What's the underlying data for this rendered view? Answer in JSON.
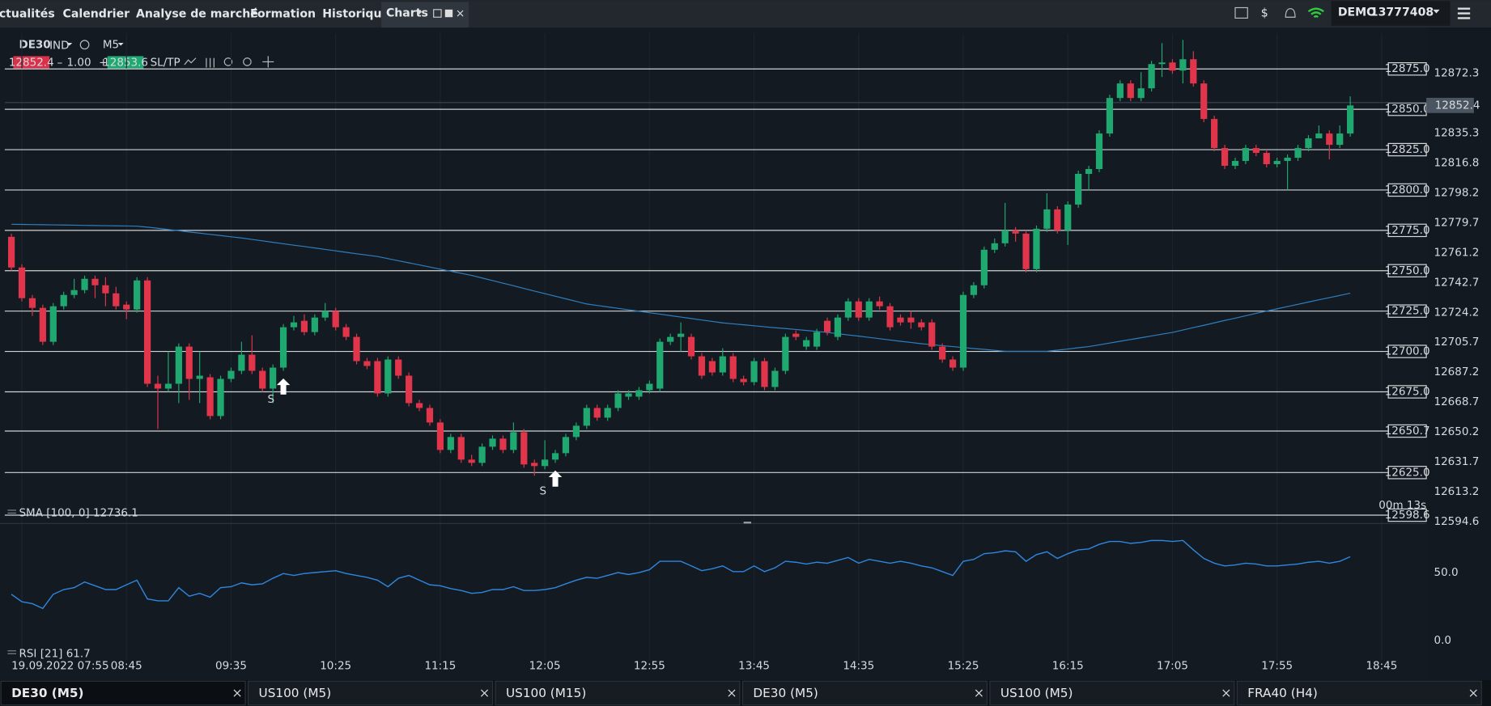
{
  "nav": {
    "tabs": [
      "ctualités",
      "Calendrier",
      "Analyse de marché",
      "Formation",
      "Historique",
      "Charts"
    ],
    "account_mode": "DEMO",
    "account_id": "13777408"
  },
  "toolbar": {
    "symbol": "DE30",
    "market": "IND",
    "timeframe": "M5",
    "bid": "12852.4",
    "volume": "1.00",
    "ask": "12853.6",
    "sltp": "SL/TP"
  },
  "chart_data": {
    "type": "candlestick",
    "up_color": "#1fa971",
    "down_color": "#e0354b",
    "x": [
      "07:50",
      "07:55",
      "08:00",
      "08:05",
      "08:10",
      "08:15",
      "08:20",
      "08:25",
      "08:30",
      "08:35",
      "08:40",
      "08:45",
      "08:50",
      "08:55",
      "09:00",
      "09:05",
      "09:10",
      "09:15",
      "09:20",
      "09:25",
      "09:30",
      "09:35",
      "09:40",
      "09:45",
      "09:50",
      "09:55",
      "10:00",
      "10:05",
      "10:10",
      "10:15",
      "10:20",
      "10:25",
      "10:30",
      "10:35",
      "10:40",
      "10:45",
      "10:50",
      "10:55",
      "11:00",
      "11:05",
      "11:10",
      "11:15",
      "11:20",
      "11:25",
      "11:30",
      "11:35",
      "11:40",
      "11:45",
      "11:50",
      "11:55",
      "12:00",
      "12:05",
      "12:10",
      "12:15",
      "12:20",
      "12:25",
      "12:30",
      "12:35",
      "12:40",
      "12:45",
      "12:50",
      "12:55",
      "13:00",
      "13:05",
      "13:10",
      "13:15",
      "13:20",
      "13:25",
      "13:30",
      "13:35",
      "13:40",
      "13:45",
      "13:50",
      "13:55",
      "14:00",
      "14:05",
      "14:10",
      "14:15",
      "14:20",
      "14:25",
      "14:30",
      "14:35",
      "14:40",
      "14:45",
      "14:50",
      "14:55",
      "15:00",
      "15:05",
      "15:10",
      "15:15",
      "15:20",
      "15:25",
      "15:30",
      "15:35",
      "15:40",
      "15:45",
      "15:50",
      "15:55",
      "16:00",
      "16:05",
      "16:10",
      "16:15",
      "16:20",
      "16:25",
      "16:30",
      "16:35",
      "16:40",
      "16:45",
      "16:50",
      "16:55",
      "17:00",
      "17:05",
      "17:10",
      "17:15",
      "17:20",
      "17:25",
      "17:30",
      "17:35",
      "17:40",
      "17:45",
      "17:50",
      "17:55",
      "18:00",
      "18:05",
      "18:10",
      "18:15",
      "18:20",
      "18:25",
      "18:30"
    ],
    "candles": [
      [
        12771,
        12773,
        12750,
        12752
      ],
      [
        12752,
        12754,
        12731,
        12733
      ],
      [
        12733,
        12735,
        12722,
        12727
      ],
      [
        12727,
        12729,
        12704,
        12706
      ],
      [
        12706,
        12730,
        12704,
        12728
      ],
      [
        12728,
        12737,
        12726,
        12735
      ],
      [
        12735,
        12745,
        12733,
        12738
      ],
      [
        12738,
        12747,
        12736,
        12745
      ],
      [
        12745,
        12747,
        12733,
        12741
      ],
      [
        12741,
        12746,
        12728,
        12736
      ],
      [
        12736,
        12740,
        12726,
        12728
      ],
      [
        12729,
        12731,
        12720,
        12726
      ],
      [
        12726,
        12746,
        12724,
        12744
      ],
      [
        12744,
        12746,
        12678,
        12680
      ],
      [
        12680,
        12685,
        12652,
        12677
      ],
      [
        12677,
        12700,
        12675,
        12680
      ],
      [
        12680,
        12705,
        12668,
        12703
      ],
      [
        12703,
        12705,
        12670,
        12683
      ],
      [
        12683,
        12700,
        12668,
        12685
      ],
      [
        12684,
        12686,
        12658,
        12660
      ],
      [
        12660,
        12685,
        12658,
        12683
      ],
      [
        12683,
        12690,
        12681,
        12688
      ],
      [
        12688,
        12706,
        12686,
        12698
      ],
      [
        12698,
        12710,
        12686,
        12688
      ],
      [
        12688,
        12690,
        12675,
        12677
      ],
      [
        12677,
        12692,
        12668,
        12690
      ],
      [
        12690,
        12717,
        12688,
        12715
      ],
      [
        12715,
        12722,
        12713,
        12718
      ],
      [
        12719,
        12723,
        12710,
        12712
      ],
      [
        12712,
        12723,
        12710,
        12721
      ],
      [
        12721,
        12730,
        12719,
        12725
      ],
      [
        12725,
        12727,
        12713,
        12715
      ],
      [
        12715,
        12717,
        12707,
        12709
      ],
      [
        12709,
        12711,
        12692,
        12694
      ],
      [
        12694,
        12696,
        12689,
        12691
      ],
      [
        12694,
        12696,
        12672,
        12674
      ],
      [
        12674,
        12697,
        12672,
        12695
      ],
      [
        12695,
        12697,
        12683,
        12685
      ],
      [
        12685,
        12687,
        12666,
        12668
      ],
      [
        12668,
        12670,
        12663,
        12665
      ],
      [
        12665,
        12667,
        12654,
        12656
      ],
      [
        12656,
        12658,
        12637,
        12639
      ],
      [
        12639,
        12649,
        12637,
        12647
      ],
      [
        12647,
        12649,
        12631,
        12633
      ],
      [
        12633,
        12636,
        12629,
        12631
      ],
      [
        12631,
        12643,
        12629,
        12641
      ],
      [
        12641,
        12648,
        12639,
        12646
      ],
      [
        12646,
        12648,
        12637,
        12639
      ],
      [
        12639,
        12656,
        12637,
        12650
      ],
      [
        12650,
        12652,
        12628,
        12630
      ],
      [
        12631,
        12633,
        12623,
        12629
      ],
      [
        12629,
        12645,
        12627,
        12633
      ],
      [
        12633,
        12639,
        12631,
        12637
      ],
      [
        12637,
        12649,
        12635,
        12647
      ],
      [
        12647,
        12656,
        12645,
        12654
      ],
      [
        12654,
        12667,
        12652,
        12665
      ],
      [
        12665,
        12667,
        12657,
        12659
      ],
      [
        12659,
        12667,
        12657,
        12665
      ],
      [
        12665,
        12676,
        12663,
        12674
      ],
      [
        12672,
        12676,
        12670,
        12674
      ],
      [
        12672,
        12678,
        12670,
        12676
      ],
      [
        12676,
        12682,
        12674,
        12680
      ],
      [
        12677,
        12708,
        12675,
        12706
      ],
      [
        12706,
        12711,
        12704,
        12709
      ],
      [
        12709,
        12718,
        12700,
        12711
      ],
      [
        12709,
        12711,
        12695,
        12697
      ],
      [
        12697,
        12699,
        12683,
        12685
      ],
      [
        12694,
        12696,
        12685,
        12687
      ],
      [
        12687,
        12702,
        12685,
        12697
      ],
      [
        12697,
        12699,
        12681,
        12683
      ],
      [
        12683,
        12685,
        12679,
        12681
      ],
      [
        12681,
        12696,
        12679,
        12694
      ],
      [
        12694,
        12696,
        12676,
        12678
      ],
      [
        12678,
        12690,
        12676,
        12688
      ],
      [
        12688,
        12711,
        12686,
        12709
      ],
      [
        12711,
        12713,
        12707,
        12709
      ],
      [
        12703,
        12709,
        12701,
        12707
      ],
      [
        12703,
        12714,
        12701,
        12712
      ],
      [
        12719,
        12721,
        12710,
        12712
      ],
      [
        12709,
        12723,
        12707,
        12721
      ],
      [
        12721,
        12733,
        12719,
        12731
      ],
      [
        12731,
        12733,
        12719,
        12721
      ],
      [
        12721,
        12733,
        12719,
        12731
      ],
      [
        12731,
        12734,
        12726,
        12728
      ],
      [
        12728,
        12730,
        12713,
        12715
      ],
      [
        12721,
        12723,
        12716,
        12718
      ],
      [
        12721,
        12725,
        12714,
        12718
      ],
      [
        12718,
        12720,
        12713,
        12715
      ],
      [
        12718,
        12720,
        12701,
        12703
      ],
      [
        12703,
        12705,
        12693,
        12695
      ],
      [
        12695,
        12697,
        12688,
        12690
      ],
      [
        12690,
        12737,
        12688,
        12735
      ],
      [
        12735,
        12743,
        12733,
        12741
      ],
      [
        12741,
        12765,
        12739,
        12763
      ],
      [
        12763,
        12770,
        12761,
        12767
      ],
      [
        12767,
        12792,
        12765,
        12775
      ],
      [
        12775,
        12777,
        12768,
        12773
      ],
      [
        12773,
        12775,
        12749,
        12751
      ],
      [
        12751,
        12778,
        12749,
        12776
      ],
      [
        12776,
        12798,
        12774,
        12788
      ],
      [
        12788,
        12790,
        12773,
        12775
      ],
      [
        12775,
        12793,
        12766,
        12791
      ],
      [
        12791,
        12812,
        12789,
        12810
      ],
      [
        12810,
        12815,
        12800,
        12813
      ],
      [
        12813,
        12837,
        12811,
        12835
      ],
      [
        12835,
        12859,
        12833,
        12857
      ],
      [
        12857,
        12868,
        12855,
        12866
      ],
      [
        12866,
        12868,
        12855,
        12857
      ],
      [
        12857,
        12873,
        12855,
        12863
      ],
      [
        12863,
        12880,
        12861,
        12878
      ],
      [
        12878,
        12891,
        12870,
        12879
      ],
      [
        12879,
        12881,
        12872,
        12874
      ],
      [
        12874,
        12893,
        12866,
        12881
      ],
      [
        12881,
        12886,
        12864,
        12866
      ],
      [
        12866,
        12868,
        12842,
        12844
      ],
      [
        12844,
        12846,
        12824,
        12826
      ],
      [
        12826,
        12828,
        12813,
        12815
      ],
      [
        12815,
        12820,
        12813,
        12818
      ],
      [
        12818,
        12828,
        12816,
        12826
      ],
      [
        12826,
        12828,
        12821,
        12823
      ],
      [
        12823,
        12825,
        12814,
        12816
      ],
      [
        12816,
        12820,
        12814,
        12818
      ],
      [
        12818,
        12822,
        12800,
        12820
      ],
      [
        12820,
        12828,
        12818,
        12826
      ],
      [
        12826,
        12834,
        12824,
        12832
      ],
      [
        12832,
        12840,
        12833,
        12835
      ],
      [
        12835,
        12837,
        12819,
        12828
      ],
      [
        12828,
        12840,
        12826,
        12835
      ],
      [
        12835,
        12858,
        12833,
        12852.4
      ]
    ],
    "ylim": [
      12594,
      12900
    ],
    "yticks": [
      12872.3,
      12835.3,
      12816.8,
      12798.2,
      12779.7,
      12761.2,
      12742.7,
      12724.2,
      12705.7,
      12687.2,
      12668.7,
      12650.2,
      12631.7,
      12613.2,
      12594.6
    ],
    "levels": [
      {
        "value": 12875,
        "label": "12875.0"
      },
      {
        "value": 12850,
        "label": "12850.0"
      },
      {
        "value": 12825,
        "label": "12825.0"
      },
      {
        "value": 12800,
        "label": "12800.0"
      },
      {
        "value": 12775,
        "label": "12775.0"
      },
      {
        "value": 12750,
        "label": "12750.0"
      },
      {
        "value": 12725,
        "label": "12725.0"
      },
      {
        "value": 12700,
        "label": "12700.0"
      },
      {
        "value": 12675,
        "label": "12675.0"
      },
      {
        "value": 12650.7,
        "label": "12650.7"
      },
      {
        "value": 12625,
        "label": "12625.0"
      },
      {
        "value": 12598.6,
        "label": "12598.6"
      }
    ],
    "last_price": 12852.4,
    "countdown": "00m 13s",
    "xticks": [
      {
        "value": "07:55",
        "label": "19.09.2022 07:55"
      },
      "08:45",
      "09:35",
      "10:25",
      "11:15",
      "12:05",
      "12:55",
      "13:45",
      "14:35",
      "15:25",
      "16:15",
      "17:05",
      "17:55",
      "18:45"
    ],
    "signals": [
      {
        "label": "S",
        "x": "10:00"
      },
      {
        "label": "S",
        "x": "12:10"
      }
    ],
    "sma": {
      "name": "SMA [100, 0] 12736.1",
      "color": "#2f7fc0",
      "values": [
        12778.8,
        12778.7,
        12778.6,
        12778.5,
        12778.4,
        12778.3,
        12778.2,
        12778.1,
        12778.0,
        12777.9,
        12777.8,
        12777.7,
        12777.6,
        12777.0,
        12776.3,
        12775.5,
        12774.8,
        12774.0,
        12773.3,
        12772.5,
        12771.8,
        12771.0,
        12770.3,
        12769.4,
        12768.5,
        12767.6,
        12766.7,
        12765.8,
        12765.0,
        12764.1,
        12763.2,
        12762.3,
        12761.4,
        12760.5,
        12759.7,
        12758.8,
        12757.5,
        12756.2,
        12754.9,
        12753.6,
        12752.3,
        12751.0,
        12749.7,
        12748.4,
        12747.1,
        12745.5,
        12743.9,
        12742.3,
        12740.7,
        12739.0,
        12737.4,
        12735.8,
        12734.2,
        12732.6,
        12731.0,
        12729.4,
        12728.5,
        12727.6,
        12726.7,
        12725.8,
        12724.9,
        12724.0,
        12723.1,
        12722.2,
        12721.3,
        12720.4,
        12719.5,
        12718.6,
        12717.7,
        12717.1,
        12716.5,
        12715.9,
        12715.3,
        12714.7,
        12714.2,
        12713.6,
        12713.0,
        12712.4,
        12711.8,
        12711.0,
        12710.2,
        12709.5,
        12708.7,
        12707.9,
        12707.1,
        12706.3,
        12705.6,
        12704.8,
        12704.2,
        12703.6,
        12703.0,
        12702.4,
        12701.8,
        12701.3,
        12700.7,
        12700.1,
        12700.1,
        12700.1,
        12700.1,
        12700.1,
        12700.8,
        12701.5,
        12702.3,
        12703.0,
        12704.1,
        12705.2,
        12706.3,
        12707.4,
        12708.5,
        12709.6,
        12710.7,
        12711.8,
        12713.3,
        12714.8,
        12716.2,
        12717.7,
        12719.2,
        12720.6,
        12722.1,
        12723.6,
        12725.0,
        12726.4,
        12727.8,
        12729.2,
        12730.6,
        12732.0,
        12733.3,
        12734.7,
        12736.1
      ]
    },
    "rsi": {
      "name": "RSI [21] 61.7",
      "color": "#2e86de",
      "ylim": [
        -14.6,
        82.6
      ],
      "yticks": [
        {
          "value": 50,
          "label": "50.0"
        },
        {
          "value": 0,
          "label": "0.0"
        }
      ],
      "values": [
        34.0,
        28.5,
        27.1,
        23.6,
        34.0,
        37.5,
        38.9,
        43.1,
        40.3,
        37.5,
        37.5,
        41.0,
        44.4,
        30.6,
        29.2,
        29.2,
        38.9,
        32.6,
        34.7,
        31.9,
        38.9,
        39.6,
        42.4,
        41.0,
        41.7,
        45.8,
        49.3,
        47.9,
        49.3,
        50.0,
        50.7,
        51.4,
        49.3,
        47.9,
        46.5,
        44.4,
        39.6,
        45.8,
        47.9,
        44.4,
        41.0,
        40.3,
        38.2,
        36.8,
        34.7,
        35.4,
        37.5,
        37.5,
        39.6,
        36.8,
        36.8,
        37.5,
        38.9,
        41.7,
        44.4,
        46.5,
        45.8,
        47.9,
        50.0,
        48.6,
        50.0,
        52.1,
        58.3,
        58.3,
        58.3,
        54.9,
        51.4,
        52.8,
        54.9,
        50.7,
        50.7,
        54.9,
        50.7,
        53.5,
        58.3,
        57.6,
        56.3,
        57.6,
        56.9,
        59.0,
        61.1,
        56.9,
        59.7,
        58.3,
        56.9,
        58.3,
        56.9,
        54.9,
        53.5,
        50.7,
        47.9,
        58.3,
        59.7,
        63.9,
        64.6,
        66.0,
        65.3,
        58.3,
        63.2,
        65.3,
        60.4,
        63.9,
        66.7,
        67.4,
        70.8,
        72.9,
        72.9,
        71.5,
        72.2,
        73.6,
        73.6,
        72.9,
        73.6,
        66.7,
        60.4,
        56.9,
        54.9,
        55.6,
        56.9,
        56.3,
        54.9,
        54.9,
        55.6,
        56.3,
        57.6,
        58.3,
        56.9,
        58.3,
        61.7
      ]
    }
  },
  "bottom_tabs": [
    "DE30 (M5)",
    "US100 (M5)",
    "US100 (M15)",
    "DE30 (M5)",
    "US100 (M5)",
    "FRA40 (H4)"
  ]
}
